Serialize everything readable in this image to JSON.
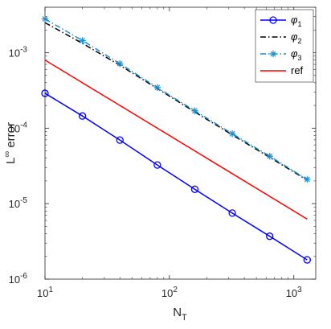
{
  "chart_data": {
    "type": "line",
    "xscale": "log",
    "yscale": "log",
    "xlim": [
      10,
      1500
    ],
    "ylim": [
      1e-06,
      0.004
    ],
    "xlabel": {
      "main": "N",
      "sub": "T"
    },
    "ylabel": {
      "main": "L",
      "sup": "∞",
      "rest": " error"
    },
    "x_ticks": [
      {
        "value": 10,
        "base": "10",
        "exp": "1"
      },
      {
        "value": 100,
        "base": "10",
        "exp": "2"
      },
      {
        "value": 1000,
        "base": "10",
        "exp": "3"
      }
    ],
    "y_ticks": [
      {
        "value": 1e-06,
        "base": "10",
        "exp": "-6"
      },
      {
        "value": 1e-05,
        "base": "10",
        "exp": "-5"
      },
      {
        "value": 0.0001,
        "base": "10",
        "exp": "-4"
      },
      {
        "value": 0.001,
        "base": "10",
        "exp": "-3"
      }
    ],
    "grid": false,
    "legend_position": "top-right",
    "x": [
      10,
      20,
      40,
      80,
      160,
      320,
      640,
      1280
    ],
    "series": [
      {
        "name": "φ",
        "name_sub": "1",
        "color": "#0000ff",
        "dash": "solid",
        "marker": "circle",
        "values": [
          0.00029,
          0.000145,
          6.95e-05,
          3.25e-05,
          1.55e-05,
          7.5e-06,
          3.7e-06,
          1.8e-06
        ]
      },
      {
        "name": "φ",
        "name_sub": "2",
        "color": "#000000",
        "dash": "dashdot",
        "marker": "none",
        "values": [
          0.0025,
          0.00133,
          0.00068,
          0.000335,
          0.000164,
          8.15e-05,
          4.1e-05,
          2.05e-05
        ]
      },
      {
        "name": "φ",
        "name_sub": "3",
        "color": "#1a8fd1",
        "dash": "dashdot",
        "marker": "asterisk",
        "values": [
          0.0028,
          0.00145,
          0.000715,
          0.000345,
          0.00017,
          8.45e-05,
          4.25e-05,
          2.1e-05
        ]
      },
      {
        "name": "ref",
        "color": "#ff0000",
        "dash": "solid",
        "marker": "none",
        "x": [
          10,
          1280
        ],
        "values": [
          0.0008,
          6.25e-06
        ]
      }
    ]
  }
}
